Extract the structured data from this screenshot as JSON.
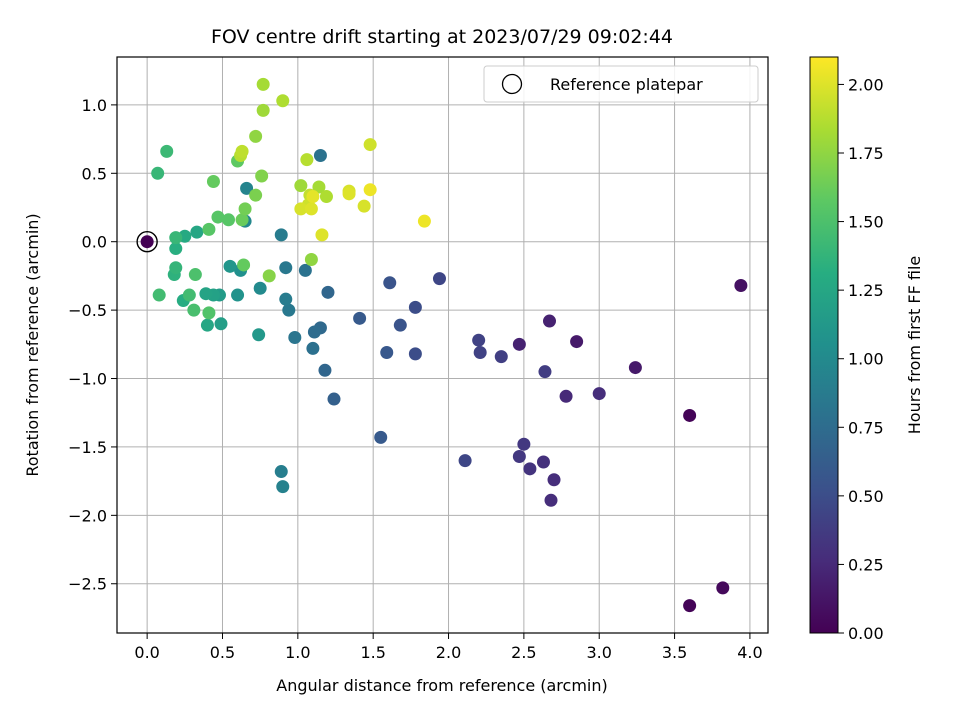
{
  "chart_data": {
    "type": "scatter",
    "title": "FOV centre drift starting at 2023/07/29 09:02:44",
    "xlabel": "Angular distance from reference (arcmin)",
    "ylabel": "Rotation from reference (arcmin)",
    "xlim": [
      -0.2,
      4.12
    ],
    "ylim": [
      -2.86,
      1.35
    ],
    "xticks": [
      0.0,
      0.5,
      1.0,
      1.5,
      2.0,
      2.5,
      3.0,
      3.5,
      4.0
    ],
    "xtick_labels": [
      "0.0",
      "0.5",
      "1.0",
      "1.5",
      "2.0",
      "2.5",
      "3.0",
      "3.5",
      "4.0"
    ],
    "yticks": [
      1.0,
      0.5,
      0.0,
      -0.5,
      -1.0,
      -1.5,
      -2.0,
      -2.5
    ],
    "ytick_labels": [
      "1.0",
      "0.5",
      "0.0",
      "−0.5",
      "−1.0",
      "−1.5",
      "−2.0",
      "−2.5"
    ],
    "grid": true,
    "legend": {
      "position": "top-right",
      "entries": [
        "Reference platepar"
      ]
    },
    "reference_point": {
      "x": 0.0,
      "y": 0.0,
      "h": 0.0
    },
    "colorbar": {
      "label": "Hours from first FF file",
      "range": [
        0.0,
        2.1
      ],
      "ticks": [
        0.0,
        0.25,
        0.5,
        0.75,
        1.0,
        1.25,
        1.5,
        1.75,
        2.0
      ],
      "tick_labels": [
        "0.00",
        "0.25",
        "0.50",
        "0.75",
        "1.00",
        "1.25",
        "1.50",
        "1.75",
        "2.00"
      ],
      "colormap": "viridis"
    },
    "points": [
      {
        "x": 0.0,
        "y": 0.0,
        "h": 0.0
      },
      {
        "x": 3.6,
        "y": -1.27,
        "h": 0.02
      },
      {
        "x": 3.6,
        "y": -2.66,
        "h": 0.02
      },
      {
        "x": 3.82,
        "y": -2.53,
        "h": 0.05
      },
      {
        "x": 3.94,
        "y": -0.32,
        "h": 0.1
      },
      {
        "x": 3.24,
        "y": -0.92,
        "h": 0.15
      },
      {
        "x": 2.85,
        "y": -0.73,
        "h": 0.15
      },
      {
        "x": 2.67,
        "y": -0.58,
        "h": 0.2
      },
      {
        "x": 2.47,
        "y": -0.75,
        "h": 0.2
      },
      {
        "x": 3.0,
        "y": -1.11,
        "h": 0.28
      },
      {
        "x": 2.78,
        "y": -1.13,
        "h": 0.25
      },
      {
        "x": 2.7,
        "y": -1.74,
        "h": 0.28
      },
      {
        "x": 2.68,
        "y": -1.89,
        "h": 0.28
      },
      {
        "x": 2.63,
        "y": -1.61,
        "h": 0.3
      },
      {
        "x": 2.54,
        "y": -1.66,
        "h": 0.32
      },
      {
        "x": 2.5,
        "y": -1.48,
        "h": 0.35
      },
      {
        "x": 2.47,
        "y": -1.57,
        "h": 0.35
      },
      {
        "x": 2.64,
        "y": -0.95,
        "h": 0.38
      },
      {
        "x": 2.35,
        "y": -0.84,
        "h": 0.4
      },
      {
        "x": 2.2,
        "y": -0.72,
        "h": 0.42
      },
      {
        "x": 2.21,
        "y": -0.81,
        "h": 0.42
      },
      {
        "x": 2.11,
        "y": -1.6,
        "h": 0.45
      },
      {
        "x": 1.94,
        "y": -0.27,
        "h": 0.45
      },
      {
        "x": 1.78,
        "y": -0.48,
        "h": 0.5
      },
      {
        "x": 1.78,
        "y": -0.82,
        "h": 0.5
      },
      {
        "x": 1.68,
        "y": -0.61,
        "h": 0.55
      },
      {
        "x": 1.61,
        "y": -0.3,
        "h": 0.55
      },
      {
        "x": 1.59,
        "y": -0.81,
        "h": 0.58
      },
      {
        "x": 1.55,
        "y": -1.43,
        "h": 0.6
      },
      {
        "x": 1.41,
        "y": -0.56,
        "h": 0.6
      },
      {
        "x": 1.24,
        "y": -1.15,
        "h": 0.65
      },
      {
        "x": 1.18,
        "y": -0.94,
        "h": 0.7
      },
      {
        "x": 1.2,
        "y": -0.37,
        "h": 0.7
      },
      {
        "x": 1.15,
        "y": -0.63,
        "h": 0.72
      },
      {
        "x": 1.11,
        "y": -0.66,
        "h": 0.75
      },
      {
        "x": 1.1,
        "y": -0.78,
        "h": 0.78
      },
      {
        "x": 1.15,
        "y": 0.63,
        "h": 0.8
      },
      {
        "x": 1.05,
        "y": -0.21,
        "h": 0.8
      },
      {
        "x": 0.98,
        "y": -0.7,
        "h": 0.82
      },
      {
        "x": 0.94,
        "y": -0.5,
        "h": 0.85
      },
      {
        "x": 0.92,
        "y": -0.19,
        "h": 0.85
      },
      {
        "x": 0.92,
        "y": -0.42,
        "h": 0.88
      },
      {
        "x": 0.89,
        "y": 0.05,
        "h": 0.88
      },
      {
        "x": 0.89,
        "y": -1.68,
        "h": 0.9
      },
      {
        "x": 0.9,
        "y": -1.79,
        "h": 0.92
      },
      {
        "x": 0.66,
        "y": 0.39,
        "h": 0.95
      },
      {
        "x": 0.65,
        "y": 0.15,
        "h": 0.98
      },
      {
        "x": 0.75,
        "y": -0.34,
        "h": 1.0
      },
      {
        "x": 0.62,
        "y": -0.21,
        "h": 1.05
      },
      {
        "x": 0.6,
        "y": -0.39,
        "h": 1.08
      },
      {
        "x": 0.55,
        "y": -0.18,
        "h": 1.1
      },
      {
        "x": 0.74,
        "y": -0.68,
        "h": 1.12
      },
      {
        "x": 0.48,
        "y": -0.39,
        "h": 1.15
      },
      {
        "x": 0.49,
        "y": -0.6,
        "h": 1.18
      },
      {
        "x": 0.44,
        "y": -0.39,
        "h": 1.2
      },
      {
        "x": 0.39,
        "y": -0.38,
        "h": 1.22
      },
      {
        "x": 0.4,
        "y": -0.61,
        "h": 1.25
      },
      {
        "x": 0.33,
        "y": 0.07,
        "h": 1.25
      },
      {
        "x": 0.25,
        "y": 0.04,
        "h": 1.28
      },
      {
        "x": 0.24,
        "y": -0.43,
        "h": 1.3
      },
      {
        "x": 0.19,
        "y": -0.05,
        "h": 1.32
      },
      {
        "x": 0.18,
        "y": -0.24,
        "h": 1.35
      },
      {
        "x": 0.19,
        "y": -0.19,
        "h": 1.38
      },
      {
        "x": 0.19,
        "y": 0.03,
        "h": 1.4
      },
      {
        "x": 0.07,
        "y": 0.5,
        "h": 1.4
      },
      {
        "x": 0.13,
        "y": 0.66,
        "h": 1.42
      },
      {
        "x": 0.08,
        "y": -0.39,
        "h": 1.45
      },
      {
        "x": 0.28,
        "y": -0.39,
        "h": 1.45
      },
      {
        "x": 0.31,
        "y": -0.5,
        "h": 1.48
      },
      {
        "x": 0.32,
        "y": -0.24,
        "h": 1.5
      },
      {
        "x": 0.41,
        "y": -0.52,
        "h": 1.52
      },
      {
        "x": 0.41,
        "y": 0.09,
        "h": 1.55
      },
      {
        "x": 0.47,
        "y": 0.18,
        "h": 1.55
      },
      {
        "x": 0.54,
        "y": 0.16,
        "h": 1.55
      },
      {
        "x": 0.6,
        "y": 0.59,
        "h": 1.58
      },
      {
        "x": 0.64,
        "y": -0.17,
        "h": 1.6
      },
      {
        "x": 0.44,
        "y": 0.44,
        "h": 1.6
      },
      {
        "x": 0.63,
        "y": 0.16,
        "h": 1.62
      },
      {
        "x": 0.65,
        "y": 0.24,
        "h": 1.65
      },
      {
        "x": 0.72,
        "y": 0.34,
        "h": 1.68
      },
      {
        "x": 0.76,
        "y": 0.48,
        "h": 1.7
      },
      {
        "x": 0.81,
        "y": -0.25,
        "h": 1.72
      },
      {
        "x": 0.72,
        "y": 0.77,
        "h": 1.75
      },
      {
        "x": 0.77,
        "y": 0.96,
        "h": 1.8
      },
      {
        "x": 0.77,
        "y": 1.15,
        "h": 1.82
      },
      {
        "x": 0.9,
        "y": 1.03,
        "h": 1.85
      },
      {
        "x": 0.62,
        "y": 0.63,
        "h": 1.88
      },
      {
        "x": 0.63,
        "y": 0.66,
        "h": 1.9
      },
      {
        "x": 1.09,
        "y": -0.13,
        "h": 1.75
      },
      {
        "x": 1.02,
        "y": 0.41,
        "h": 1.8
      },
      {
        "x": 1.14,
        "y": 0.4,
        "h": 1.82
      },
      {
        "x": 1.19,
        "y": 0.33,
        "h": 1.85
      },
      {
        "x": 1.06,
        "y": 0.6,
        "h": 1.88
      },
      {
        "x": 1.08,
        "y": 0.34,
        "h": 1.92
      },
      {
        "x": 1.07,
        "y": 0.27,
        "h": 1.95
      },
      {
        "x": 1.02,
        "y": 0.24,
        "h": 1.98
      },
      {
        "x": 1.09,
        "y": 0.24,
        "h": 2.0
      },
      {
        "x": 1.1,
        "y": 0.33,
        "h": 2.02
      },
      {
        "x": 1.16,
        "y": 0.05,
        "h": 2.0
      },
      {
        "x": 1.34,
        "y": 0.37,
        "h": 1.98
      },
      {
        "x": 1.34,
        "y": 0.35,
        "h": 2.0
      },
      {
        "x": 1.44,
        "y": 0.26,
        "h": 1.98
      },
      {
        "x": 1.48,
        "y": 0.38,
        "h": 2.05
      },
      {
        "x": 1.48,
        "y": 0.71,
        "h": 1.95
      },
      {
        "x": 1.84,
        "y": 0.15,
        "h": 2.05
      }
    ]
  }
}
